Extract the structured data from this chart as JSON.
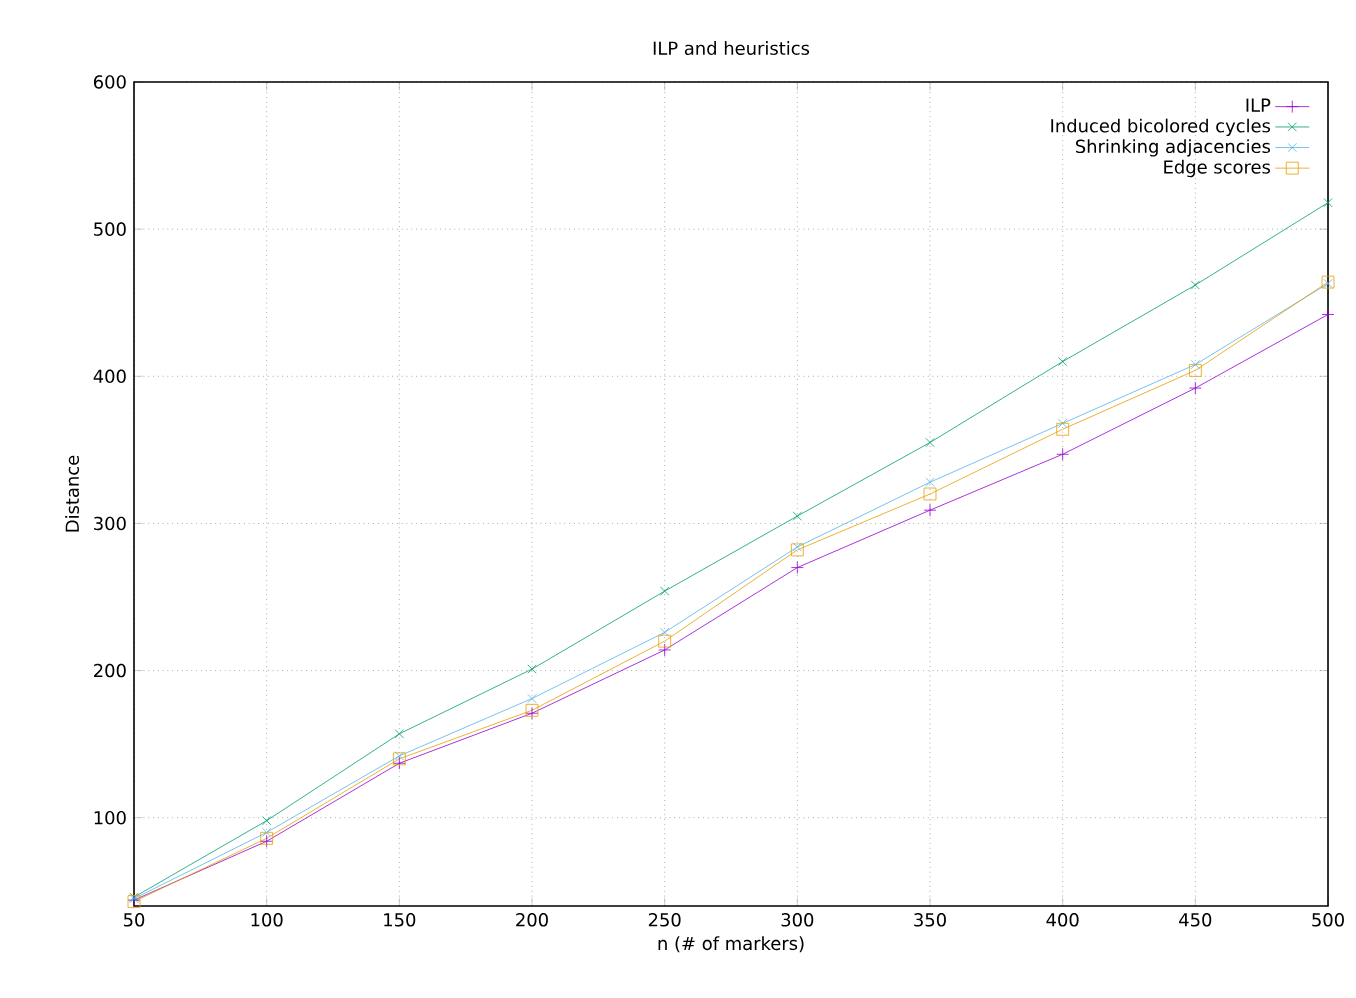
{
  "chart_data": {
    "type": "line",
    "title": "ILP and heuristics",
    "xlabel": "n (# of markers)",
    "ylabel": "Distance",
    "x": [
      50,
      100,
      150,
      200,
      250,
      300,
      350,
      400,
      450,
      500
    ],
    "series": [
      {
        "name": "ILP",
        "color": "#9400d3",
        "marker": "plus",
        "values": [
          44,
          84,
          137,
          171,
          214,
          270,
          309,
          347,
          392,
          442
        ]
      },
      {
        "name": "Induced bicolored cycles",
        "color": "#009e73",
        "marker": "cross",
        "values": [
          46,
          98,
          157,
          201,
          254,
          305,
          355,
          410,
          462,
          518
        ]
      },
      {
        "name": "Shrinking adjacencies",
        "color": "#56b4e9",
        "marker": "cross",
        "values": [
          45,
          90,
          142,
          181,
          226,
          284,
          328,
          368,
          408,
          463
        ]
      },
      {
        "name": "Edge scores",
        "color": "#e69f00",
        "marker": "square",
        "values": [
          43,
          86,
          140,
          173,
          220,
          282,
          320,
          364,
          404,
          464
        ]
      }
    ],
    "xlim": [
      50,
      500
    ],
    "xticks": [
      50,
      100,
      150,
      200,
      250,
      300,
      350,
      400,
      450,
      500
    ],
    "ylim": [
      40,
      600
    ],
    "yticks": [
      100,
      200,
      300,
      400,
      500,
      600
    ],
    "grid": true,
    "legend": "top right",
    "line_style": "solid"
  }
}
